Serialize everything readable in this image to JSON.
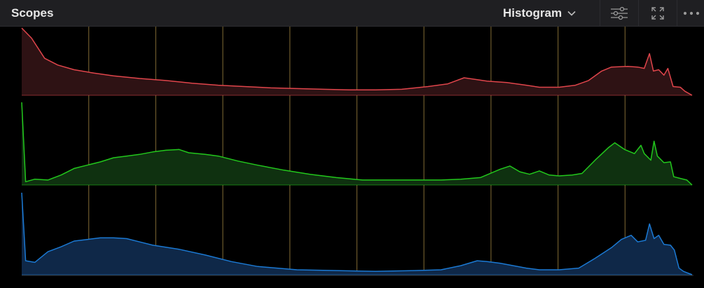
{
  "header": {
    "title": "Scopes",
    "mode": "Histogram",
    "icons": {
      "dropdown": "chevron-down-icon",
      "settings": "sliders-icon",
      "expand": "expand-icon",
      "more": "more-icon"
    }
  },
  "colors": {
    "red_line": "#e0454b",
    "red_fill": "#2e1214",
    "green_line": "#22c71c",
    "green_fill": "#0f3110",
    "blue_line": "#1b79d3",
    "blue_fill": "#0f2848",
    "grid": "#6d5a2c",
    "baseline": "#3a3a3a"
  },
  "chart_data": {
    "type": "area",
    "grid": "vertical",
    "x_range": [
      0,
      1023
    ],
    "series": [
      {
        "channel": "red",
        "points": [
          [
            0,
            1.0
          ],
          [
            15,
            0.85
          ],
          [
            35,
            0.55
          ],
          [
            55,
            0.45
          ],
          [
            80,
            0.38
          ],
          [
            110,
            0.33
          ],
          [
            140,
            0.29
          ],
          [
            180,
            0.25
          ],
          [
            220,
            0.22
          ],
          [
            260,
            0.18
          ],
          [
            300,
            0.15
          ],
          [
            340,
            0.13
          ],
          [
            380,
            0.11
          ],
          [
            420,
            0.1
          ],
          [
            460,
            0.09
          ],
          [
            500,
            0.08
          ],
          [
            540,
            0.08
          ],
          [
            580,
            0.09
          ],
          [
            620,
            0.13
          ],
          [
            650,
            0.17
          ],
          [
            675,
            0.26
          ],
          [
            690,
            0.24
          ],
          [
            710,
            0.21
          ],
          [
            740,
            0.19
          ],
          [
            770,
            0.15
          ],
          [
            790,
            0.12
          ],
          [
            820,
            0.12
          ],
          [
            845,
            0.15
          ],
          [
            865,
            0.22
          ],
          [
            885,
            0.36
          ],
          [
            900,
            0.42
          ],
          [
            925,
            0.43
          ],
          [
            940,
            0.42
          ],
          [
            950,
            0.4
          ],
          [
            958,
            0.62
          ],
          [
            964,
            0.36
          ],
          [
            972,
            0.38
          ],
          [
            980,
            0.3
          ],
          [
            986,
            0.4
          ],
          [
            994,
            0.13
          ],
          [
            1005,
            0.12
          ],
          [
            1012,
            0.06
          ],
          [
            1023,
            0.0
          ]
        ]
      },
      {
        "channel": "green",
        "points": [
          [
            0,
            1.0
          ],
          [
            6,
            0.04
          ],
          [
            20,
            0.07
          ],
          [
            40,
            0.06
          ],
          [
            60,
            0.12
          ],
          [
            80,
            0.2
          ],
          [
            100,
            0.24
          ],
          [
            120,
            0.28
          ],
          [
            140,
            0.33
          ],
          [
            160,
            0.35
          ],
          [
            180,
            0.37
          ],
          [
            200,
            0.4
          ],
          [
            220,
            0.42
          ],
          [
            240,
            0.43
          ],
          [
            255,
            0.39
          ],
          [
            280,
            0.37
          ],
          [
            300,
            0.35
          ],
          [
            330,
            0.29
          ],
          [
            360,
            0.24
          ],
          [
            400,
            0.18
          ],
          [
            440,
            0.13
          ],
          [
            480,
            0.09
          ],
          [
            520,
            0.06
          ],
          [
            560,
            0.06
          ],
          [
            600,
            0.06
          ],
          [
            640,
            0.06
          ],
          [
            670,
            0.07
          ],
          [
            700,
            0.09
          ],
          [
            730,
            0.19
          ],
          [
            745,
            0.23
          ],
          [
            760,
            0.16
          ],
          [
            775,
            0.13
          ],
          [
            790,
            0.17
          ],
          [
            805,
            0.12
          ],
          [
            820,
            0.11
          ],
          [
            840,
            0.12
          ],
          [
            855,
            0.14
          ],
          [
            875,
            0.3
          ],
          [
            895,
            0.45
          ],
          [
            905,
            0.51
          ],
          [
            920,
            0.43
          ],
          [
            935,
            0.38
          ],
          [
            945,
            0.48
          ],
          [
            950,
            0.38
          ],
          [
            960,
            0.3
          ],
          [
            965,
            0.53
          ],
          [
            970,
            0.35
          ],
          [
            980,
            0.27
          ],
          [
            990,
            0.28
          ],
          [
            995,
            0.1
          ],
          [
            1005,
            0.08
          ],
          [
            1015,
            0.06
          ],
          [
            1023,
            0.0
          ]
        ]
      },
      {
        "channel": "blue",
        "points": [
          [
            0,
            1.0
          ],
          [
            6,
            0.17
          ],
          [
            20,
            0.15
          ],
          [
            40,
            0.28
          ],
          [
            60,
            0.34
          ],
          [
            80,
            0.41
          ],
          [
            100,
            0.43
          ],
          [
            120,
            0.45
          ],
          [
            140,
            0.45
          ],
          [
            160,
            0.44
          ],
          [
            180,
            0.4
          ],
          [
            200,
            0.36
          ],
          [
            240,
            0.31
          ],
          [
            280,
            0.24
          ],
          [
            320,
            0.16
          ],
          [
            360,
            0.1
          ],
          [
            420,
            0.06
          ],
          [
            480,
            0.05
          ],
          [
            540,
            0.04
          ],
          [
            600,
            0.05
          ],
          [
            640,
            0.06
          ],
          [
            670,
            0.11
          ],
          [
            695,
            0.17
          ],
          [
            710,
            0.16
          ],
          [
            730,
            0.14
          ],
          [
            750,
            0.11
          ],
          [
            770,
            0.08
          ],
          [
            790,
            0.06
          ],
          [
            820,
            0.06
          ],
          [
            850,
            0.08
          ],
          [
            875,
            0.2
          ],
          [
            900,
            0.33
          ],
          [
            915,
            0.43
          ],
          [
            930,
            0.48
          ],
          [
            940,
            0.4
          ],
          [
            952,
            0.42
          ],
          [
            958,
            0.62
          ],
          [
            965,
            0.44
          ],
          [
            972,
            0.48
          ],
          [
            980,
            0.37
          ],
          [
            990,
            0.36
          ],
          [
            996,
            0.3
          ],
          [
            1003,
            0.08
          ],
          [
            1010,
            0.04
          ],
          [
            1023,
            0.0
          ]
        ]
      }
    ]
  }
}
